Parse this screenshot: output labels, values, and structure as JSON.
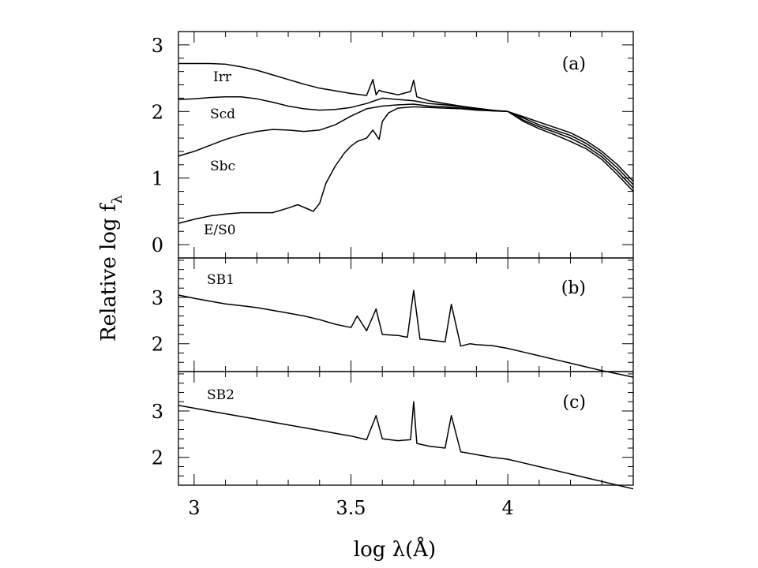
{
  "chart_data": [
    {
      "panel": "(a)",
      "type": "line",
      "xlabel": "log λ(Å)",
      "ylabel": "Relative log f",
      "ylabel_subscript": "λ",
      "xlim": [
        2.95,
        4.4
      ],
      "ylim": [
        -0.2,
        3.2
      ],
      "x_ticks": [
        "3",
        "3.5",
        "4"
      ],
      "y_ticks": [
        "0",
        "1",
        "2",
        "3"
      ],
      "grid": false,
      "series": [
        {
          "name": "Irr",
          "x": [
            2.95,
            3.0,
            3.05,
            3.1,
            3.15,
            3.2,
            3.25,
            3.3,
            3.35,
            3.4,
            3.45,
            3.5,
            3.55,
            3.57,
            3.58,
            3.59,
            3.6,
            3.65,
            3.69,
            3.7,
            3.71,
            3.75,
            3.8,
            3.85,
            3.9,
            3.95,
            4.0,
            4.05,
            4.1,
            4.15,
            4.2,
            4.25,
            4.3,
            4.35,
            4.4
          ],
          "y": [
            2.72,
            2.72,
            2.72,
            2.71,
            2.67,
            2.62,
            2.55,
            2.48,
            2.41,
            2.35,
            2.31,
            2.27,
            2.24,
            2.48,
            2.25,
            2.32,
            2.3,
            2.25,
            2.3,
            2.47,
            2.22,
            2.16,
            2.12,
            2.08,
            2.05,
            2.02,
            2.0,
            1.92,
            1.84,
            1.76,
            1.68,
            1.56,
            1.4,
            1.2,
            0.95
          ]
        },
        {
          "name": "Scd",
          "x": [
            2.95,
            3.0,
            3.05,
            3.1,
            3.15,
            3.2,
            3.25,
            3.3,
            3.35,
            3.4,
            3.45,
            3.5,
            3.55,
            3.6,
            3.65,
            3.7,
            3.75,
            3.8,
            3.85,
            3.9,
            3.95,
            4.0,
            4.05,
            4.1,
            4.15,
            4.2,
            4.25,
            4.3,
            4.35,
            4.4
          ],
          "y": [
            2.18,
            2.19,
            2.21,
            2.22,
            2.22,
            2.19,
            2.14,
            2.08,
            2.04,
            2.02,
            2.03,
            2.06,
            2.12,
            2.2,
            2.18,
            2.16,
            2.12,
            2.1,
            2.07,
            2.04,
            2.02,
            2.0,
            1.9,
            1.8,
            1.72,
            1.64,
            1.52,
            1.36,
            1.15,
            0.9
          ]
        },
        {
          "name": "Sbc",
          "x": [
            2.95,
            3.0,
            3.05,
            3.1,
            3.15,
            3.2,
            3.25,
            3.3,
            3.35,
            3.4,
            3.45,
            3.5,
            3.55,
            3.6,
            3.65,
            3.7,
            3.75,
            3.8,
            3.85,
            3.9,
            3.95,
            4.0,
            4.05,
            4.1,
            4.15,
            4.2,
            4.25,
            4.3,
            4.35,
            4.4
          ],
          "y": [
            1.33,
            1.4,
            1.49,
            1.58,
            1.65,
            1.7,
            1.73,
            1.72,
            1.7,
            1.72,
            1.8,
            1.93,
            2.04,
            2.08,
            2.1,
            2.11,
            2.08,
            2.07,
            2.05,
            2.03,
            2.01,
            2.0,
            1.87,
            1.77,
            1.69,
            1.6,
            1.48,
            1.32,
            1.1,
            0.85
          ]
        },
        {
          "name": "E/S0",
          "x": [
            2.95,
            3.0,
            3.05,
            3.1,
            3.15,
            3.2,
            3.25,
            3.3,
            3.33,
            3.36,
            3.38,
            3.4,
            3.42,
            3.45,
            3.48,
            3.5,
            3.52,
            3.55,
            3.57,
            3.59,
            3.6,
            3.62,
            3.65,
            3.7,
            3.75,
            3.8,
            3.85,
            3.9,
            3.95,
            4.0,
            4.05,
            4.1,
            4.15,
            4.2,
            4.25,
            4.3,
            4.35,
            4.4
          ],
          "y": [
            0.32,
            0.38,
            0.43,
            0.46,
            0.48,
            0.48,
            0.48,
            0.55,
            0.6,
            0.54,
            0.5,
            0.62,
            0.92,
            1.18,
            1.38,
            1.48,
            1.55,
            1.6,
            1.72,
            1.58,
            1.85,
            1.98,
            2.05,
            2.07,
            2.06,
            2.05,
            2.04,
            2.02,
            2.01,
            2.0,
            1.85,
            1.74,
            1.65,
            1.55,
            1.44,
            1.28,
            1.05,
            0.8
          ]
        }
      ]
    },
    {
      "panel": "(b)",
      "type": "line",
      "xlim": [
        2.95,
        4.4
      ],
      "ylim": [
        1.4,
        3.85
      ],
      "y_ticks": [
        "2",
        "3"
      ],
      "grid": false,
      "series": [
        {
          "name": "SB1",
          "x": [
            2.95,
            3.0,
            3.05,
            3.1,
            3.15,
            3.2,
            3.25,
            3.3,
            3.35,
            3.4,
            3.45,
            3.5,
            3.52,
            3.55,
            3.58,
            3.6,
            3.65,
            3.68,
            3.7,
            3.72,
            3.75,
            3.8,
            3.82,
            3.85,
            3.88,
            3.9,
            3.95,
            4.0,
            4.05,
            4.1,
            4.15,
            4.2,
            4.25,
            4.3,
            4.35,
            4.4
          ],
          "y": [
            3.05,
            2.98,
            2.92,
            2.86,
            2.82,
            2.78,
            2.72,
            2.66,
            2.6,
            2.52,
            2.42,
            2.35,
            2.6,
            2.28,
            2.75,
            2.2,
            2.18,
            2.14,
            3.15,
            2.1,
            2.08,
            2.04,
            2.85,
            1.95,
            2.0,
            1.98,
            1.96,
            1.9,
            1.82,
            1.74,
            1.66,
            1.58,
            1.5,
            1.42,
            1.35,
            1.28
          ]
        }
      ]
    },
    {
      "panel": "(c)",
      "type": "line",
      "xlim": [
        2.95,
        4.4
      ],
      "ylim": [
        1.4,
        3.85
      ],
      "y_ticks": [
        "2",
        "3"
      ],
      "grid": false,
      "series": [
        {
          "name": "SB2",
          "x": [
            2.95,
            3.0,
            3.05,
            3.1,
            3.15,
            3.2,
            3.25,
            3.3,
            3.35,
            3.4,
            3.45,
            3.5,
            3.55,
            3.58,
            3.6,
            3.65,
            3.69,
            3.7,
            3.71,
            3.75,
            3.8,
            3.82,
            3.85,
            3.9,
            3.95,
            4.0,
            4.05,
            4.1,
            4.15,
            4.2,
            4.25,
            4.3,
            4.35,
            4.4
          ],
          "y": [
            3.12,
            3.06,
            3.0,
            2.94,
            2.88,
            2.82,
            2.76,
            2.7,
            2.64,
            2.58,
            2.52,
            2.46,
            2.38,
            2.9,
            2.4,
            2.36,
            2.38,
            3.2,
            2.3,
            2.24,
            2.2,
            2.9,
            2.12,
            2.06,
            2.0,
            1.96,
            1.88,
            1.8,
            1.72,
            1.64,
            1.56,
            1.48,
            1.4,
            1.32
          ]
        }
      ]
    }
  ]
}
